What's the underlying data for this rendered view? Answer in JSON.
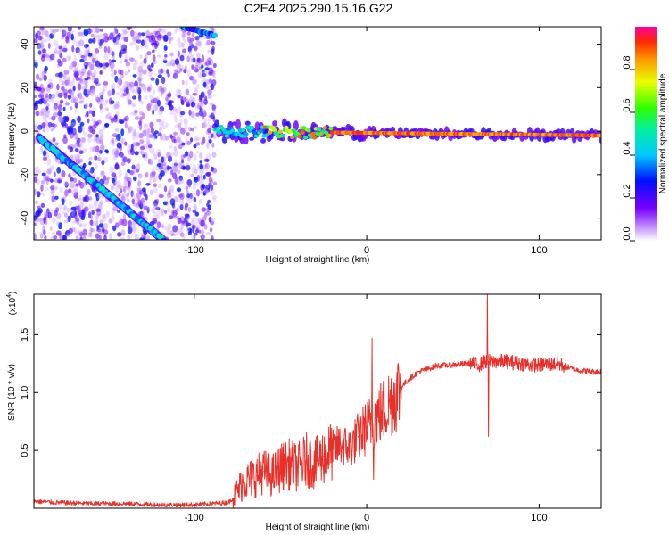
{
  "title": "C2E4.2025.290.15.16.G22",
  "colors": {
    "line": "#e8302a",
    "spectrum_low": "#7a00ff",
    "spectrum_high": "#ff2a00",
    "frame": "#000000"
  },
  "chart_data": [
    {
      "type": "heatmap",
      "name": "spectrogram",
      "xlabel": "Height of straight line (km)",
      "ylabel": "Frequency (Hz)",
      "xlim": [
        -193,
        136
      ],
      "ylim": [
        -50,
        48
      ],
      "x_ticks": [
        -100,
        0,
        100
      ],
      "x_tick_labels": [
        "-100",
        "0",
        "100"
      ],
      "y_ticks": [
        -40,
        -20,
        0,
        20,
        40
      ],
      "y_tick_labels": [
        "-40",
        "-20",
        "0",
        "20",
        "40"
      ],
      "colorbar": {
        "label": "Normalized spectral amplitude",
        "range": [
          0,
          1
        ],
        "ticks": [
          0.0,
          0.2,
          0.4,
          0.6,
          0.8
        ],
        "tick_labels": [
          "0.0",
          "0.2",
          "0.4",
          "0.6",
          "0.8"
        ],
        "colormap": "rainbow (violet to red)"
      },
      "features": [
        {
          "name": "zero-frequency carrier",
          "x": [
            -88,
            136
          ],
          "freq_start": 0,
          "freq_end": -2,
          "amplitude": "high (0.6-1.0) beyond -20 km"
        },
        {
          "name": "descending tone",
          "x": [
            -190,
            -118
          ],
          "freq_start": -3,
          "freq_end": -50,
          "amplitude": "0.3-0.5"
        },
        {
          "name": "upper tone fragment",
          "x": [
            -107,
            -88
          ],
          "freq_start": 48,
          "freq_end": 44,
          "amplitude": "0.3-0.5"
        },
        {
          "name": "diffuse noise",
          "x": [
            -193,
            -88
          ],
          "freq_range": [
            -50,
            48
          ],
          "amplitude": "low (<0.2)"
        }
      ]
    },
    {
      "type": "line",
      "name": "snr",
      "xlabel": "Height of straight line (km)",
      "ylabel": "SNR (10 * v/v)",
      "y_scale_label": "(x10",
      "y_scale_exponent": "4",
      "xlim": [
        -193,
        136
      ],
      "ylim": [
        0,
        1.85
      ],
      "x_ticks": [
        -100,
        0,
        100
      ],
      "x_tick_labels": [
        "-100",
        "0",
        "100"
      ],
      "y_ticks": [
        0.5,
        1.0,
        1.5
      ],
      "y_tick_labels": [
        "0.5",
        "1.0",
        "1.5"
      ],
      "series": [
        {
          "name": "SNR",
          "x": [
            -193,
            -180,
            -160,
            -140,
            -120,
            -100,
            -90,
            -80,
            -76,
            -72,
            -68,
            -64,
            -60,
            -55,
            -50,
            -45,
            -40,
            -35,
            -30,
            -25,
            -20,
            -15,
            -10,
            -5,
            0,
            5,
            10,
            15,
            20,
            25,
            30,
            35,
            40,
            50,
            60,
            65,
            68,
            70,
            72,
            75,
            80,
            85,
            90,
            95,
            100,
            110,
            115,
            120,
            125,
            130,
            136
          ],
          "values": [
            0.06,
            0.05,
            0.04,
            0.04,
            0.03,
            0.03,
            0.04,
            0.05,
            0.12,
            0.22,
            0.25,
            0.28,
            0.32,
            0.28,
            0.35,
            0.38,
            0.35,
            0.42,
            0.38,
            0.45,
            0.5,
            0.55,
            0.52,
            0.62,
            0.7,
            0.78,
            0.85,
            0.95,
            1.05,
            1.12,
            1.18,
            1.2,
            1.23,
            1.24,
            1.25,
            1.24,
            1.26,
            1.28,
            1.26,
            1.27,
            1.27,
            1.26,
            1.25,
            1.24,
            1.24,
            1.25,
            1.23,
            1.2,
            1.19,
            1.18,
            1.18
          ],
          "spikes": [
            {
              "x": 3,
              "value": 1.47
            },
            {
              "x": 4,
              "value": 0.25
            },
            {
              "x": 70,
              "value": 1.85
            },
            {
              "x": 70.6,
              "value": 0.62
            }
          ]
        }
      ]
    }
  ]
}
